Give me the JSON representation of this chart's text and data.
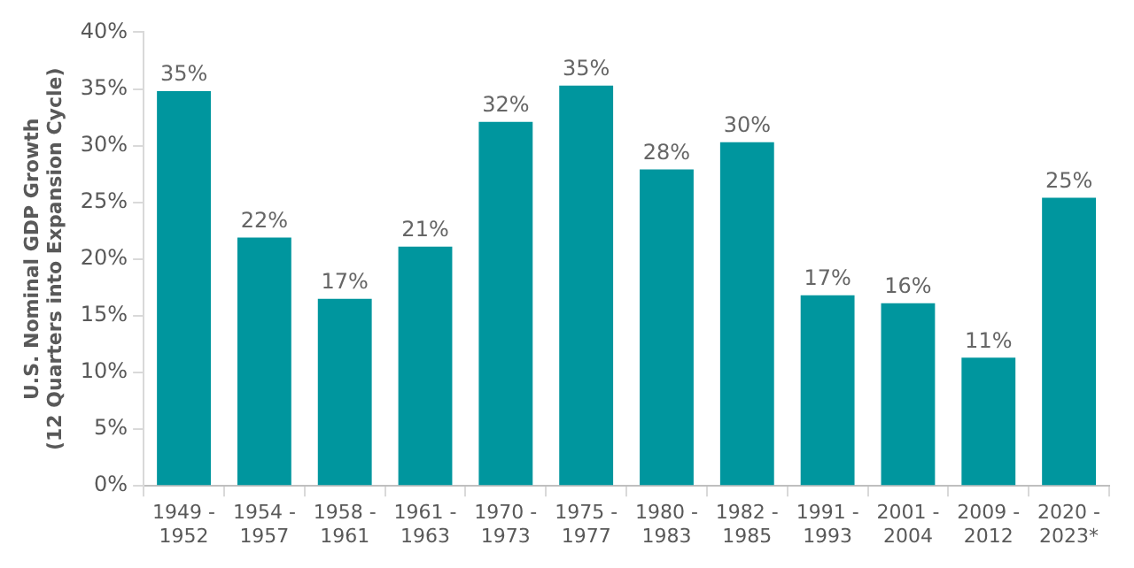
{
  "chart_data": {
    "type": "bar",
    "ylabel": "U.S. Nominal GDP Growth\n(12 Quarters into Expansion Cycle)",
    "categories": [
      "1949 - 1952",
      "1954 - 1957",
      "1958 - 1961",
      "1961 - 1963",
      "1970 - 1973",
      "1975 - 1977",
      "1980 - 1983",
      "1982 - 1985",
      "1991 - 1993",
      "2001 - 2004",
      "2009 - 2012",
      "2020 - 2023*"
    ],
    "values": [
      34.8,
      21.9,
      16.5,
      21.1,
      32.1,
      35.3,
      27.9,
      30.3,
      16.8,
      16.1,
      11.3,
      25.4
    ],
    "value_labels": [
      "35%",
      "22%",
      "17%",
      "21%",
      "32%",
      "35%",
      "28%",
      "30%",
      "17%",
      "16%",
      "11%",
      "25%"
    ],
    "color": "#00969e",
    "ylim": [
      0,
      40
    ],
    "yticks": [
      {
        "value": 0,
        "label": "0%"
      },
      {
        "value": 5,
        "label": "5%"
      },
      {
        "value": 10,
        "label": "10%"
      },
      {
        "value": 15,
        "label": "15%"
      },
      {
        "value": 20,
        "label": "20%"
      },
      {
        "value": 25,
        "label": "25%"
      },
      {
        "value": 30,
        "label": "30%"
      },
      {
        "value": 35,
        "label": "35%"
      },
      {
        "value": 40,
        "label": "40%"
      }
    ],
    "grid": false,
    "legend": false
  }
}
